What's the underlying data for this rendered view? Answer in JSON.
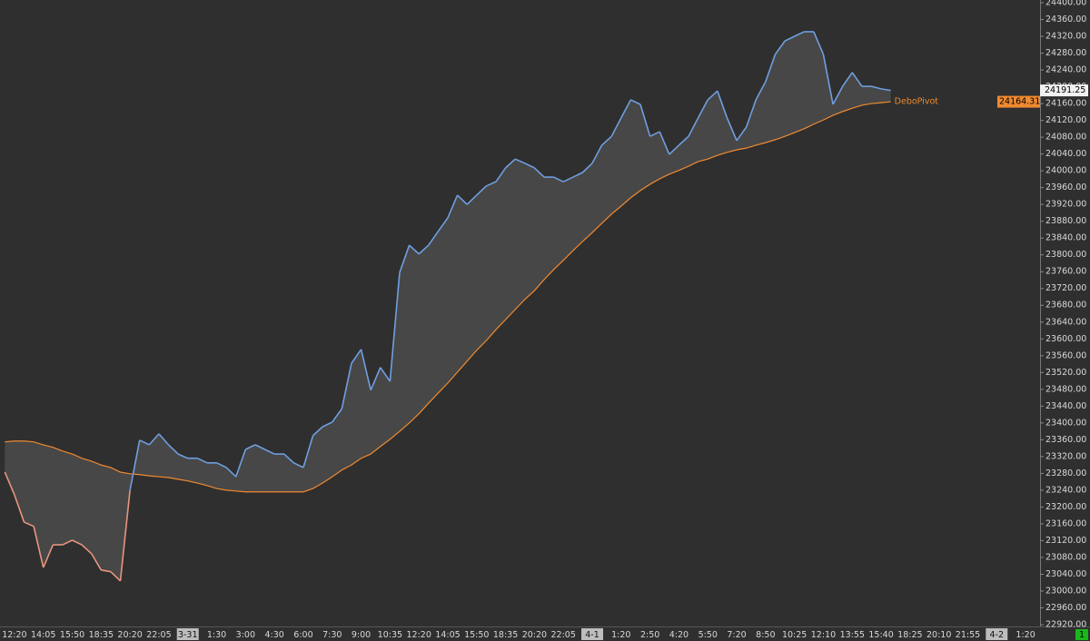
{
  "chart_data": {
    "type": "line",
    "categories": [
      null,
      "12:20",
      null,
      null,
      "14:05",
      null,
      null,
      "15:50",
      null,
      null,
      "18:35",
      null,
      null,
      "20:20",
      null,
      null,
      "22:05",
      null,
      null,
      "3-31",
      null,
      null,
      "1:30",
      null,
      null,
      "3:00",
      null,
      null,
      "4:30",
      null,
      null,
      "6:00",
      null,
      null,
      "7:30",
      null,
      null,
      "9:00",
      null,
      null,
      "10:35",
      null,
      null,
      "12:20",
      null,
      null,
      "14:05",
      null,
      null,
      "15:50",
      null,
      null,
      "18:35",
      null,
      null,
      "20:20",
      null,
      null,
      "22:05",
      null,
      null,
      "4-1",
      null,
      null,
      "1:20",
      null,
      null,
      "2:50",
      null,
      null,
      "4:20",
      null,
      null,
      "5:50",
      null,
      null,
      "7:20",
      null,
      null,
      "8:50",
      null,
      null,
      "10:25",
      null,
      null,
      "12:10",
      null,
      null,
      "13:55",
      null,
      null,
      "15:40",
      null,
      null,
      "18:25",
      null,
      null,
      "20:10",
      null,
      null,
      "21:55",
      null,
      null,
      "4-2",
      null,
      null,
      "1:20",
      null
    ],
    "series": [
      {
        "color": "#6f9fe0",
        "down_color": "#e8957e",
        "values": [
          23283,
          23229,
          23164,
          23154,
          23056,
          23110,
          23110,
          23121,
          23110,
          23089,
          23050,
          23046,
          23024,
          23240,
          23359,
          23348,
          23374,
          23348,
          23326,
          23316,
          23316,
          23305,
          23305,
          23294,
          23272,
          23337,
          23348,
          23337,
          23326,
          23326,
          23305,
          23294,
          23370,
          23391,
          23402,
          23434,
          23542,
          23575,
          23478,
          23532,
          23499,
          23758,
          23823,
          23802,
          23823,
          23856,
          23888,
          23942,
          23920,
          23942,
          23964,
          23974,
          24007,
          24028,
          24018,
          24007,
          23985,
          23985,
          23974,
          23985,
          23996,
          24018,
          24061,
          24082,
          24126,
          24169,
          24158,
          24082,
          24093,
          24039,
          24061,
          24082,
          24126,
          24169,
          24190,
          24126,
          24072,
          24104,
          24169,
          24212,
          24277,
          24309,
          24320,
          24331,
          24331,
          24277,
          24158,
          24201,
          24234,
          24201,
          24201,
          24195,
          24191.25,
          null,
          null,
          null,
          null,
          null,
          null,
          null,
          null,
          null,
          null,
          null,
          null,
          null,
          null,
          null
        ]
      },
      {
        "name": "DeboPivot",
        "color": "#f08a30",
        "values": [
          23355,
          23357,
          23357,
          23355,
          23348,
          23342,
          23333,
          23326,
          23316,
          23309,
          23300,
          23294,
          23283,
          23279,
          23277,
          23274,
          23272,
          23270,
          23266,
          23262,
          23257,
          23251,
          23244,
          23240,
          23238,
          23236,
          23236,
          23236,
          23236,
          23236,
          23236,
          23236,
          23244,
          23257,
          23272,
          23288,
          23300,
          23316,
          23326,
          23344,
          23361,
          23380,
          23400,
          23422,
          23447,
          23471,
          23495,
          23521,
          23547,
          23573,
          23596,
          23622,
          23646,
          23670,
          23694,
          23715,
          23741,
          23765,
          23787,
          23810,
          23832,
          23853,
          23875,
          23897,
          23916,
          23936,
          23953,
          23968,
          23981,
          23992,
          24001,
          24011,
          24022,
          24028,
          24037,
          24044,
          24050,
          24054,
          24061,
          24067,
          24074,
          24082,
          24091,
          24100,
          24111,
          24121,
          24132,
          24141,
          24149,
          24156,
          24160,
          24162,
          24164.31,
          null,
          null,
          null,
          null,
          null,
          null,
          null,
          null,
          null,
          null,
          null,
          null,
          null,
          null,
          null
        ]
      }
    ],
    "fill_color": "#474747",
    "ylim": [
      22920,
      24400
    ],
    "yticks": [
      {
        "value": 22920,
        "label": "22920.00"
      },
      {
        "value": 22960,
        "label": "22960.00"
      },
      {
        "value": 23000,
        "label": "23000.00"
      },
      {
        "value": 23040,
        "label": "23040.00"
      },
      {
        "value": 23080,
        "label": "23080.00"
      },
      {
        "value": 23120,
        "label": "23120.00"
      },
      {
        "value": 23160,
        "label": "23160.00"
      },
      {
        "value": 23200,
        "label": "23200.00"
      },
      {
        "value": 23240,
        "label": "23240.00"
      },
      {
        "value": 23280,
        "label": "23280.00"
      },
      {
        "value": 23320,
        "label": "23320.00"
      },
      {
        "value": 23360,
        "label": "23360.00"
      },
      {
        "value": 23400,
        "label": "23400.00"
      },
      {
        "value": 23440,
        "label": "23440.00"
      },
      {
        "value": 23480,
        "label": "23480.00"
      },
      {
        "value": 23520,
        "label": "23520.00"
      },
      {
        "value": 23560,
        "label": "23560.00"
      },
      {
        "value": 23600,
        "label": "23600.00"
      },
      {
        "value": 23640,
        "label": "23640.00"
      },
      {
        "value": 23680,
        "label": "23680.00"
      },
      {
        "value": 23720,
        "label": "23720.00"
      },
      {
        "value": 23760,
        "label": "23760.00"
      },
      {
        "value": 23800,
        "label": "23800.00"
      },
      {
        "value": 23840,
        "label": "23840.00"
      },
      {
        "value": 23880,
        "label": "23880.00"
      },
      {
        "value": 23920,
        "label": "23920.00"
      },
      {
        "value": 23960,
        "label": "23960.00"
      },
      {
        "value": 24000,
        "label": "24000.00"
      },
      {
        "value": 24040,
        "label": "24040.00"
      },
      {
        "value": 24080,
        "label": "24080.00"
      },
      {
        "value": 24120,
        "label": "24120.00"
      },
      {
        "value": 24160,
        "label": "24160.00"
      },
      {
        "value": 24200,
        "label": "24200.00"
      },
      {
        "value": 24240,
        "label": "24240.00"
      },
      {
        "value": 24280,
        "label": "24280.00"
      },
      {
        "value": 24320,
        "label": "24320.00"
      },
      {
        "value": 24360,
        "label": "24360.00"
      },
      {
        "value": 24400,
        "label": "24400.00"
      }
    ]
  },
  "status": "1"
}
